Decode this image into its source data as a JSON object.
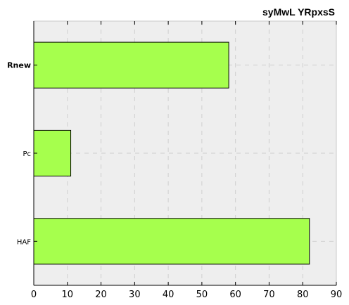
{
  "chart_data": {
    "type": "bar",
    "orientation": "horizontal",
    "title": "syMwL YRpxsS",
    "xlabel": "",
    "ylabel": "",
    "categories": [
      "Rnew",
      "Pc",
      "HAF"
    ],
    "bold_categories": [
      "Rnew"
    ],
    "values": [
      58,
      11,
      82
    ],
    "xlim": [
      0,
      90
    ],
    "xticks": [
      0,
      10,
      20,
      30,
      40,
      50,
      60,
      70,
      80,
      90
    ],
    "grid": true,
    "bar_color": "#a6ff4d",
    "bar_edge_color": "#000000",
    "background_color": "#eeeeee"
  }
}
